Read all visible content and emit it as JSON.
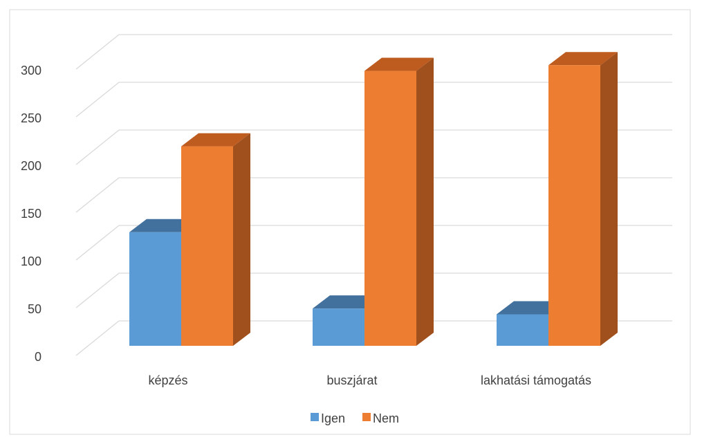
{
  "chart_data": {
    "type": "bar",
    "title": "",
    "xlabel": "",
    "ylabel": "",
    "categories": [
      "képzés",
      "buszjárat",
      "lakhatási támogatás"
    ],
    "series": [
      {
        "name": "Igen",
        "values": [
          119,
          39,
          33
        ],
        "color": "#5B9BD5",
        "top_color": "#41719C",
        "side_color": "#3D6A94"
      },
      {
        "name": "Nem",
        "values": [
          209,
          288,
          294
        ],
        "color": "#ED7D31",
        "top_color": "#BE5B1F",
        "side_color": "#A0501D"
      }
    ],
    "ylim": [
      0,
      300
    ],
    "yticks": [
      "0",
      "50",
      "100",
      "150",
      "200",
      "250",
      "300"
    ],
    "ytick_values": [
      0,
      50,
      100,
      150,
      200,
      250,
      300
    ],
    "grid": true,
    "legend_position": "bottom"
  }
}
